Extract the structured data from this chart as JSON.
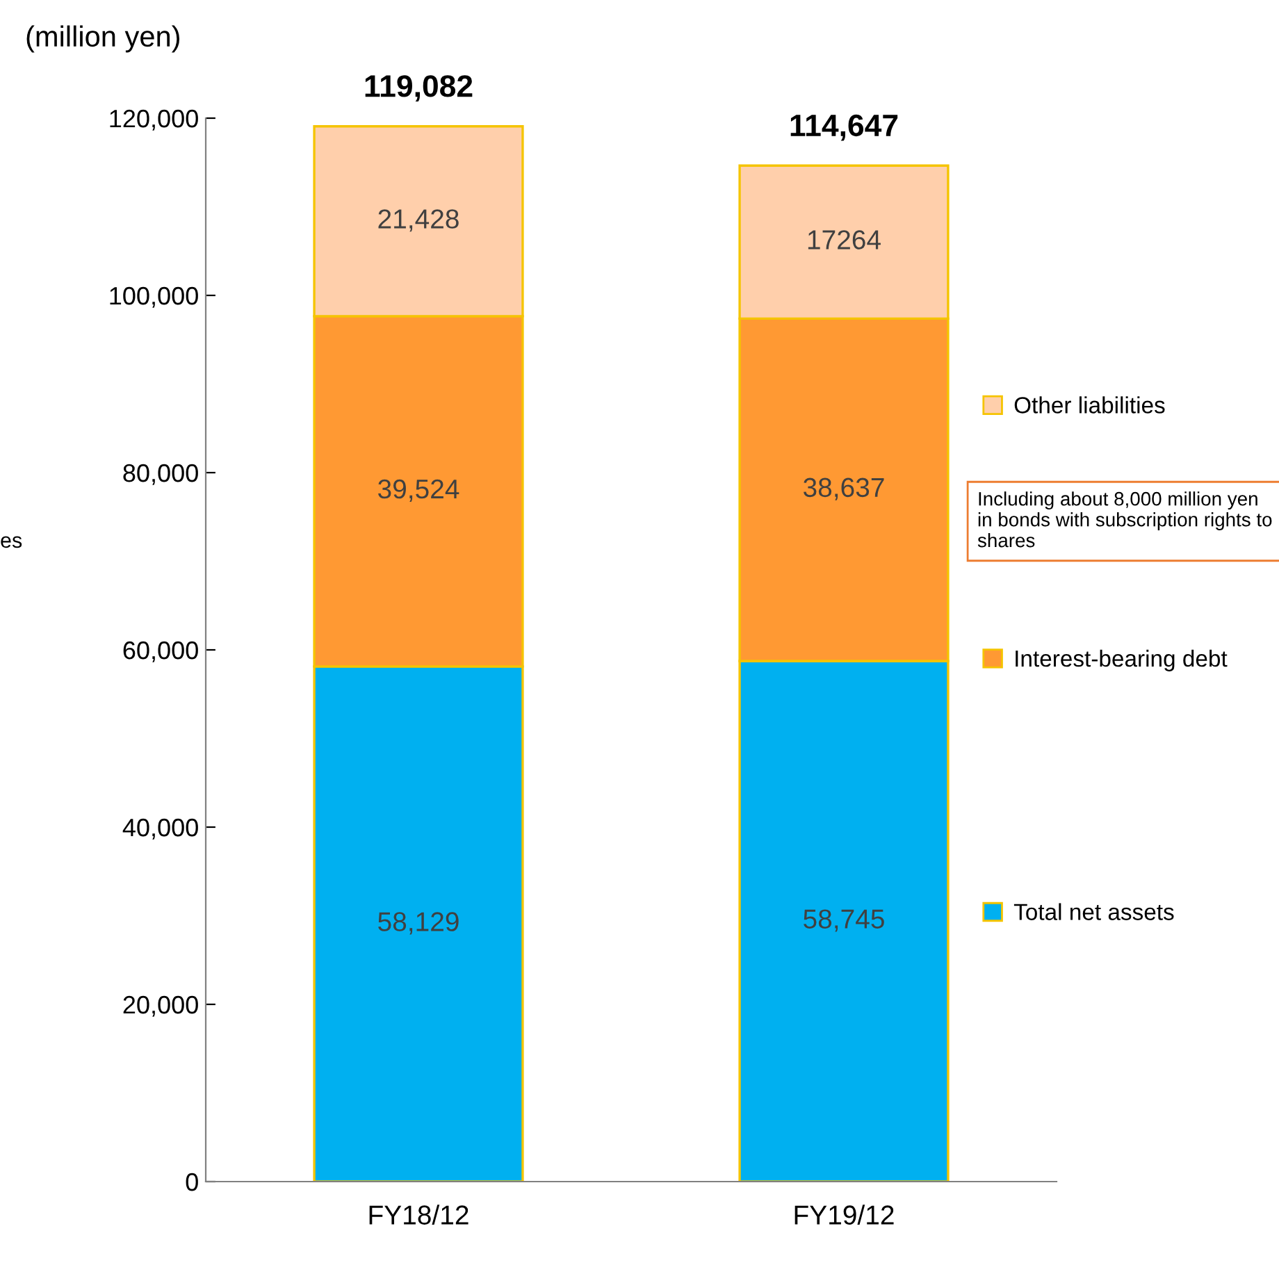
{
  "chart_data": {
    "type": "bar",
    "stacked": true,
    "ylabel": "(million yen)",
    "categories": [
      "FY18/12",
      "FY19/12"
    ],
    "series": [
      {
        "name": "Total net assets",
        "color": "#00b0f0",
        "values": [
          58129,
          58745
        ],
        "value_labels": [
          "58,129",
          "58,745"
        ]
      },
      {
        "name": "Interest-bearing debt",
        "color": "#ff9933",
        "values": [
          39524,
          38637
        ],
        "value_labels": [
          "39,524",
          "38,637"
        ]
      },
      {
        "name": "Other liabilities",
        "color": "#ffcfab",
        "values": [
          21428,
          17264
        ],
        "value_labels": [
          "21,428",
          "17264"
        ]
      }
    ],
    "totals": [
      "119,082",
      "114,647"
    ],
    "ylim": [
      0,
      120000
    ],
    "yticks": [
      {
        "value": 0,
        "label": "0"
      },
      {
        "value": 20000,
        "label": "20,000"
      },
      {
        "value": 40000,
        "label": "40,000"
      },
      {
        "value": 60000,
        "label": "60,000"
      },
      {
        "value": 80000,
        "label": "80,000"
      },
      {
        "value": 100000,
        "label": "100,000"
      },
      {
        "value": 120000,
        "label": "120,000"
      }
    ],
    "legend": "right",
    "grid": false,
    "annotations": [
      "Including about 8,000 million yen in bonds with subscription rights to shares",
      "es"
    ]
  }
}
